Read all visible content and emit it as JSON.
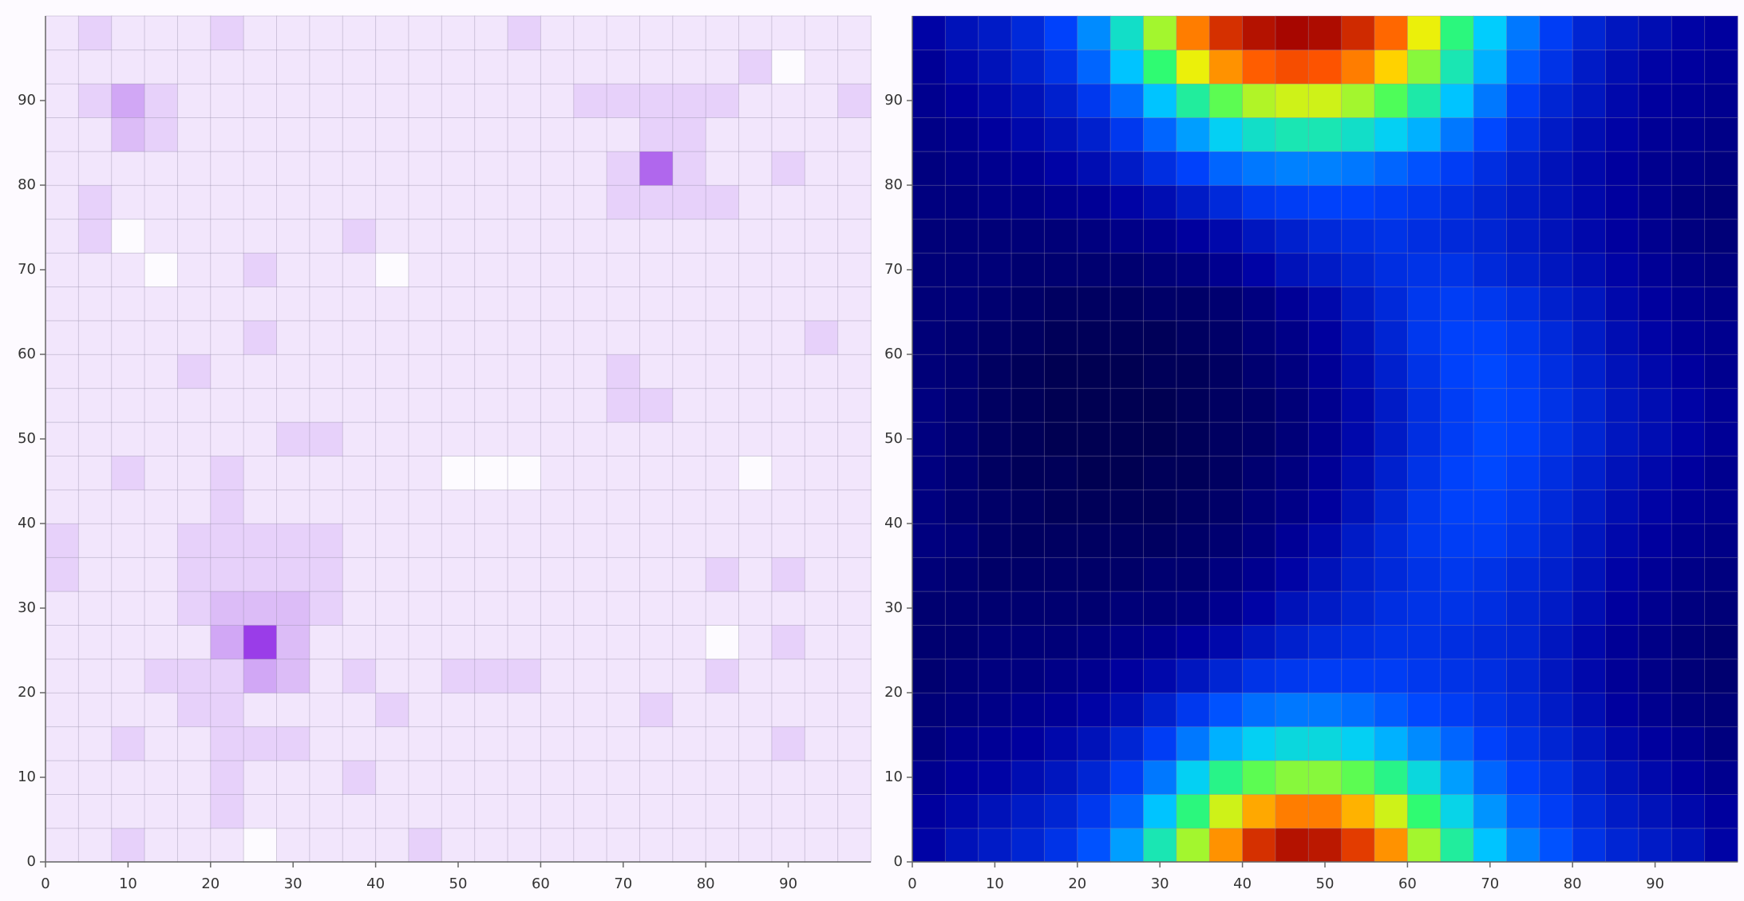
{
  "chart_data": [
    {
      "type": "heatmap",
      "xlim": [
        0,
        100
      ],
      "ylim": [
        0,
        100
      ],
      "xticks": [
        0,
        10,
        20,
        30,
        40,
        50,
        60,
        70,
        80,
        90
      ],
      "yticks": [
        0,
        10,
        20,
        30,
        40,
        50,
        60,
        70,
        80,
        90
      ],
      "zlim": [
        0,
        9
      ],
      "colors": [
        "#fdfbff",
        "#9a3de8"
      ],
      "grid": true,
      "values": [
        [
          1,
          1,
          2,
          1,
          1,
          1,
          0,
          1,
          1,
          1,
          1,
          2,
          1,
          1,
          1,
          1,
          1,
          1,
          1,
          1,
          1,
          1,
          1,
          1,
          1
        ],
        [
          1,
          1,
          1,
          1,
          1,
          2,
          1,
          1,
          1,
          1,
          1,
          1,
          1,
          1,
          1,
          1,
          1,
          1,
          1,
          1,
          1,
          1,
          1,
          1,
          1
        ],
        [
          1,
          1,
          1,
          1,
          1,
          2,
          1,
          1,
          1,
          2,
          1,
          1,
          1,
          1,
          1,
          1,
          1,
          1,
          1,
          1,
          1,
          1,
          1,
          1,
          1
        ],
        [
          1,
          1,
          2,
          1,
          1,
          2,
          2,
          2,
          1,
          1,
          1,
          1,
          1,
          1,
          1,
          1,
          1,
          1,
          1,
          1,
          1,
          1,
          2,
          1,
          1
        ],
        [
          1,
          1,
          1,
          1,
          2,
          2,
          1,
          1,
          1,
          1,
          2,
          1,
          1,
          1,
          1,
          1,
          1,
          1,
          2,
          1,
          1,
          1,
          1,
          1,
          1
        ],
        [
          1,
          1,
          1,
          2,
          2,
          2,
          4,
          3,
          1,
          2,
          1,
          1,
          2,
          2,
          2,
          1,
          1,
          1,
          1,
          1,
          2,
          1,
          1,
          1,
          1
        ],
        [
          1,
          1,
          1,
          1,
          1,
          4,
          9,
          3,
          1,
          1,
          1,
          1,
          1,
          1,
          1,
          1,
          1,
          1,
          1,
          1,
          0,
          1,
          2,
          1,
          1
        ],
        [
          1,
          1,
          1,
          1,
          2,
          3,
          3,
          3,
          2,
          1,
          1,
          1,
          1,
          1,
          1,
          1,
          1,
          1,
          1,
          1,
          1,
          1,
          1,
          1,
          1
        ],
        [
          2,
          1,
          1,
          1,
          2,
          2,
          2,
          2,
          2,
          1,
          1,
          1,
          1,
          1,
          1,
          1,
          1,
          1,
          1,
          1,
          2,
          1,
          2,
          1,
          1
        ],
        [
          2,
          1,
          1,
          1,
          2,
          2,
          2,
          2,
          2,
          1,
          1,
          1,
          1,
          1,
          1,
          1,
          1,
          1,
          1,
          1,
          1,
          1,
          1,
          1,
          1
        ],
        [
          1,
          1,
          1,
          1,
          1,
          2,
          1,
          1,
          1,
          1,
          1,
          1,
          1,
          1,
          1,
          1,
          1,
          1,
          1,
          1,
          1,
          1,
          1,
          1,
          1
        ],
        [
          1,
          1,
          2,
          1,
          1,
          2,
          1,
          1,
          1,
          1,
          1,
          1,
          0,
          0,
          0,
          1,
          1,
          1,
          1,
          1,
          1,
          0,
          1,
          1,
          1
        ],
        [
          1,
          1,
          1,
          1,
          1,
          1,
          1,
          2,
          2,
          1,
          1,
          1,
          1,
          1,
          1,
          1,
          1,
          1,
          1,
          1,
          1,
          1,
          1,
          1,
          1
        ],
        [
          1,
          1,
          1,
          1,
          1,
          1,
          1,
          1,
          1,
          1,
          1,
          1,
          1,
          1,
          1,
          1,
          1,
          2,
          2,
          1,
          1,
          1,
          1,
          1,
          1
        ],
        [
          1,
          1,
          1,
          1,
          2,
          1,
          1,
          1,
          1,
          1,
          1,
          1,
          1,
          1,
          1,
          1,
          1,
          2,
          1,
          1,
          1,
          1,
          1,
          1,
          1
        ],
        [
          1,
          1,
          1,
          1,
          1,
          1,
          2,
          1,
          1,
          1,
          1,
          1,
          1,
          1,
          1,
          1,
          1,
          1,
          1,
          1,
          1,
          1,
          1,
          2,
          1
        ],
        [
          1,
          1,
          1,
          1,
          1,
          1,
          1,
          1,
          1,
          1,
          1,
          1,
          1,
          1,
          1,
          1,
          1,
          1,
          1,
          1,
          1,
          1,
          1,
          1,
          1
        ],
        [
          1,
          1,
          1,
          0,
          1,
          1,
          2,
          1,
          1,
          1,
          0,
          1,
          1,
          1,
          1,
          1,
          1,
          1,
          1,
          1,
          1,
          1,
          1,
          1,
          1
        ],
        [
          1,
          2,
          0,
          1,
          1,
          1,
          1,
          1,
          1,
          2,
          1,
          1,
          1,
          1,
          1,
          1,
          1,
          1,
          1,
          1,
          1,
          1,
          1,
          1,
          1
        ],
        [
          1,
          2,
          1,
          1,
          1,
          1,
          1,
          1,
          1,
          1,
          1,
          1,
          1,
          1,
          1,
          1,
          1,
          2,
          2,
          2,
          2,
          1,
          1,
          1,
          1
        ],
        [
          1,
          1,
          1,
          1,
          1,
          1,
          1,
          1,
          1,
          1,
          1,
          1,
          1,
          1,
          1,
          1,
          1,
          2,
          7,
          2,
          1,
          1,
          2,
          1,
          1
        ],
        [
          1,
          1,
          3,
          2,
          1,
          1,
          1,
          1,
          1,
          1,
          1,
          1,
          1,
          1,
          1,
          1,
          1,
          1,
          2,
          2,
          1,
          1,
          1,
          1,
          1
        ],
        [
          1,
          2,
          4,
          2,
          1,
          1,
          1,
          1,
          1,
          1,
          1,
          1,
          1,
          1,
          1,
          1,
          2,
          2,
          2,
          2,
          2,
          1,
          1,
          1,
          2
        ],
        [
          1,
          1,
          1,
          1,
          1,
          1,
          1,
          1,
          1,
          1,
          1,
          1,
          1,
          1,
          1,
          1,
          1,
          1,
          1,
          1,
          1,
          2,
          0,
          1,
          1
        ],
        [
          1,
          2,
          1,
          1,
          1,
          2,
          1,
          1,
          1,
          1,
          1,
          1,
          1,
          1,
          2,
          1,
          1,
          1,
          1,
          1,
          1,
          1,
          1,
          1,
          1
        ]
      ]
    },
    {
      "type": "heatmap",
      "xlim": [
        0,
        100
      ],
      "ylim": [
        0,
        100
      ],
      "xticks": [
        0,
        10,
        20,
        30,
        40,
        50,
        60,
        70,
        80,
        90
      ],
      "yticks": [
        0,
        10,
        20,
        30,
        40,
        50,
        60,
        70,
        80,
        90
      ],
      "zlim": [
        0,
        100
      ],
      "colors": [
        "#000033",
        "#0000a0",
        "#0044ff",
        "#00ccff",
        "#33ff66",
        "#ffee00",
        "#ff5500",
        "#a00000"
      ],
      "grid": true,
      "values": [
        [
          15,
          18,
          20,
          22,
          25,
          30,
          38,
          50,
          65,
          80,
          92,
          97,
          96,
          90,
          80,
          65,
          52,
          42,
          35,
          30,
          25,
          22,
          20,
          18,
          15
        ],
        [
          14,
          16,
          18,
          20,
          22,
          26,
          32,
          42,
          55,
          68,
          78,
          82,
          82,
          77,
          68,
          56,
          45,
          37,
          31,
          27,
          23,
          20,
          18,
          16,
          14
        ],
        [
          12,
          14,
          15,
          17,
          19,
          22,
          27,
          34,
          44,
          54,
          60,
          63,
          63,
          60,
          54,
          46,
          38,
          32,
          28,
          25,
          21,
          18,
          16,
          14,
          12
        ],
        [
          10,
          12,
          13,
          14,
          16,
          18,
          22,
          27,
          34,
          40,
          44,
          46,
          46,
          44,
          40,
          36,
          32,
          28,
          25,
          22,
          19,
          16,
          14,
          12,
          10
        ],
        [
          9,
          10,
          11,
          12,
          13,
          15,
          17,
          21,
          26,
          30,
          33,
          34,
          34,
          33,
          31,
          29,
          27,
          25,
          23,
          20,
          17,
          14,
          12,
          10,
          9
        ],
        [
          8,
          9,
          10,
          10,
          11,
          12,
          14,
          16,
          19,
          22,
          25,
          26,
          27,
          27,
          27,
          26,
          25,
          24,
          22,
          19,
          16,
          13,
          11,
          9,
          8
        ],
        [
          8,
          8,
          9,
          9,
          9,
          10,
          11,
          12,
          14,
          16,
          19,
          21,
          23,
          24,
          25,
          25,
          24,
          23,
          22,
          19,
          16,
          13,
          11,
          9,
          8
        ],
        [
          8,
          8,
          8,
          8,
          8,
          8,
          9,
          9,
          10,
          12,
          15,
          18,
          20,
          22,
          24,
          25,
          25,
          24,
          22,
          20,
          17,
          14,
          12,
          10,
          9
        ],
        [
          9,
          8,
          7,
          7,
          7,
          7,
          7,
          8,
          8,
          10,
          12,
          15,
          18,
          21,
          23,
          25,
          26,
          25,
          23,
          21,
          18,
          15,
          13,
          11,
          10
        ],
        [
          10,
          9,
          7,
          6,
          6,
          6,
          6,
          6,
          7,
          8,
          10,
          13,
          16,
          20,
          23,
          26,
          27,
          27,
          25,
          22,
          19,
          16,
          14,
          12,
          11
        ],
        [
          10,
          8,
          7,
          6,
          5,
          5,
          5,
          5,
          6,
          7,
          9,
          11,
          14,
          18,
          22,
          26,
          28,
          28,
          26,
          23,
          20,
          17,
          15,
          13,
          12
        ],
        [
          10,
          8,
          6,
          5,
          5,
          4,
          4,
          5,
          5,
          6,
          8,
          10,
          13,
          17,
          21,
          25,
          28,
          29,
          27,
          24,
          21,
          18,
          16,
          14,
          12
        ],
        [
          10,
          8,
          6,
          5,
          4,
          4,
          4,
          4,
          5,
          6,
          7,
          9,
          12,
          16,
          20,
          24,
          27,
          29,
          28,
          25,
          22,
          19,
          17,
          15,
          13
        ],
        [
          10,
          8,
          6,
          5,
          4,
          4,
          4,
          4,
          5,
          6,
          7,
          9,
          12,
          16,
          20,
          24,
          27,
          29,
          28,
          25,
          22,
          19,
          17,
          15,
          13
        ],
        [
          9,
          8,
          6,
          5,
          4,
          4,
          4,
          5,
          5,
          6,
          8,
          10,
          13,
          17,
          21,
          25,
          28,
          29,
          27,
          24,
          21,
          18,
          16,
          14,
          12
        ],
        [
          9,
          8,
          7,
          6,
          5,
          5,
          5,
          5,
          6,
          7,
          9,
          11,
          14,
          18,
          22,
          26,
          28,
          28,
          26,
          23,
          20,
          17,
          15,
          13,
          12
        ],
        [
          9,
          9,
          8,
          7,
          6,
          6,
          6,
          7,
          7,
          8,
          10,
          13,
          16,
          20,
          23,
          26,
          27,
          26,
          24,
          21,
          19,
          16,
          14,
          12,
          11
        ],
        [
          9,
          9,
          9,
          8,
          8,
          8,
          8,
          9,
          10,
          12,
          15,
          18,
          20,
          22,
          24,
          25,
          25,
          23,
          21,
          19,
          17,
          15,
          13,
          11,
          10
        ],
        [
          9,
          9,
          9,
          9,
          9,
          10,
          11,
          12,
          14,
          16,
          19,
          21,
          23,
          24,
          25,
          24,
          23,
          22,
          20,
          18,
          16,
          14,
          12,
          10,
          9
        ],
        [
          10,
          10,
          11,
          11,
          12,
          13,
          15,
          17,
          20,
          23,
          26,
          27,
          28,
          28,
          27,
          26,
          24,
          22,
          20,
          18,
          16,
          14,
          12,
          10,
          9
        ],
        [
          10,
          11,
          12,
          13,
          15,
          17,
          20,
          24,
          28,
          32,
          34,
          35,
          35,
          34,
          32,
          30,
          27,
          24,
          21,
          18,
          16,
          14,
          12,
          11,
          10
        ],
        [
          11,
          12,
          14,
          16,
          18,
          21,
          26,
          32,
          38,
          44,
          48,
          50,
          50,
          48,
          44,
          40,
          34,
          29,
          24,
          20,
          17,
          15,
          13,
          12,
          11
        ],
        [
          12,
          14,
          16,
          18,
          21,
          26,
          33,
          42,
          52,
          60,
          66,
          68,
          68,
          65,
          59,
          51,
          42,
          34,
          27,
          22,
          19,
          16,
          14,
          13,
          12
        ],
        [
          13,
          16,
          18,
          21,
          25,
          32,
          42,
          56,
          70,
          80,
          85,
          87,
          86,
          82,
          74,
          63,
          50,
          40,
          31,
          25,
          20,
          17,
          15,
          14,
          13
        ],
        [
          15,
          18,
          20,
          23,
          28,
          36,
          48,
          65,
          82,
          92,
          97,
          99,
          98,
          93,
          84,
          70,
          55,
          43,
          34,
          27,
          22,
          19,
          17,
          15,
          14
        ]
      ]
    }
  ]
}
